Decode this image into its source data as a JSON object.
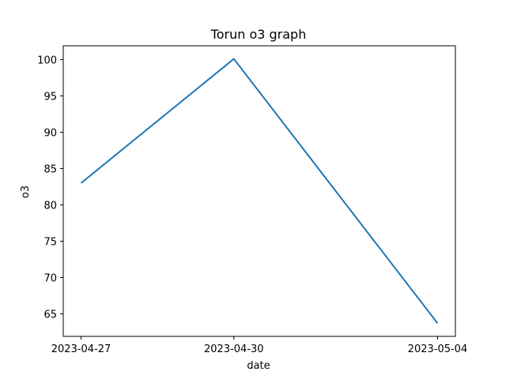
{
  "chart_data": {
    "type": "line",
    "title": "Torun o3 graph",
    "xlabel": "date",
    "ylabel": "o3",
    "x": [
      "2023-04-27",
      "2023-04-30",
      "2023-05-04"
    ],
    "x_ticks": [
      "2023-04-27",
      "2023-04-30",
      "2023-05-04"
    ],
    "series": [
      {
        "values": [
          83.0,
          100.1,
          63.7
        ],
        "color": "#1f77b4"
      }
    ],
    "ylim": [
      61.9,
      101.9
    ],
    "y_ticks": [
      65,
      70,
      75,
      80,
      85,
      90,
      95,
      100
    ],
    "grid": false,
    "legend": "none"
  }
}
